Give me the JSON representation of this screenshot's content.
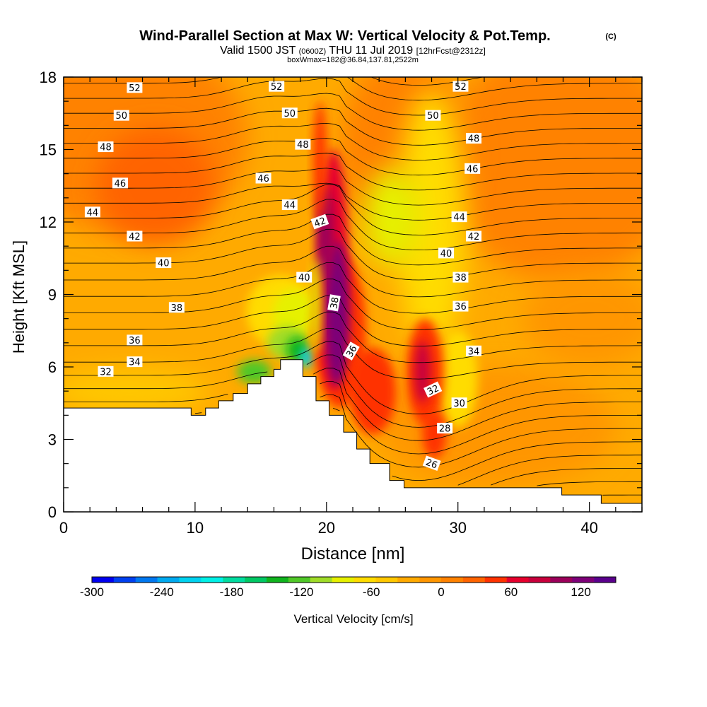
{
  "chart_data": {
    "type": "heatmap",
    "title": "Wind-Parallel Section at Max W: Vertical Velocity & Pot.Temp.",
    "title_mark": "(C)",
    "subtitle_parts": [
      "Valid 1500 JST",
      "(0600Z)",
      "THU 11 Jul 2019",
      "[12hrFcst@2312z]"
    ],
    "subtitle2": "boxWmax=182@36.84,137.81,2522m",
    "xlabel": "Distance [nm]",
    "ylabel": "Height [Kft MSL]",
    "xlim": [
      0,
      44
    ],
    "ylim": [
      0,
      18
    ],
    "x_major_ticks": [
      0,
      10,
      20,
      30,
      40
    ],
    "y_major_ticks": [
      0,
      3,
      6,
      9,
      12,
      15,
      18
    ],
    "colorbar": {
      "label": "Vertical Velocity [cm/s]",
      "min": -300,
      "max": 150,
      "step": 20,
      "tick_labels": [
        "-300",
        "-240",
        "-180",
        "-120",
        "-60",
        "0",
        "60",
        "120"
      ],
      "tick_values": [
        -300,
        -240,
        -180,
        -120,
        -60,
        0,
        60,
        120
      ],
      "colors": [
        "#0000f0",
        "#0040f0",
        "#0078f0",
        "#00aaf0",
        "#00d2f0",
        "#00f0e6",
        "#00dca0",
        "#00c864",
        "#10b41e",
        "#50c828",
        "#a0dc28",
        "#e6f000",
        "#ffdc00",
        "#ffc800",
        "#ffaa00",
        "#ff9600",
        "#ff8200",
        "#ff6400",
        "#ff3200",
        "#e6002d",
        "#c8003c",
        "#9b005a",
        "#7d0078",
        "#5a008c"
      ]
    },
    "terrain": {
      "x": [
        0,
        9.7,
        9.7,
        10.8,
        10.8,
        11.8,
        11.8,
        12.9,
        12.9,
        14.0,
        14.0,
        15.0,
        15.0,
        16.0,
        16.0,
        16.5,
        16.5,
        18.2,
        18.2,
        19.2,
        19.2,
        20.2,
        20.2,
        21.3,
        21.3,
        22.3,
        22.3,
        23.3,
        23.3,
        24.8,
        24.8,
        25.9,
        25.9,
        37.9,
        37.9,
        40.9,
        40.9,
        44
      ],
      "y": [
        4.3,
        4.3,
        4.0,
        4.0,
        4.3,
        4.3,
        4.6,
        4.6,
        4.9,
        4.9,
        5.3,
        5.3,
        5.6,
        5.6,
        5.9,
        5.9,
        6.3,
        6.3,
        5.6,
        5.6,
        4.6,
        4.6,
        4.0,
        4.0,
        3.3,
        3.3,
        2.6,
        2.6,
        2.0,
        2.0,
        1.3,
        1.3,
        1.0,
        1.0,
        0.7,
        0.7,
        0.35,
        0.35
      ]
    },
    "theta_contour_labels": [
      {
        "text": "52",
        "x": 5.4,
        "y": 17.55,
        "angle": 0
      },
      {
        "text": "52",
        "x": 16.2,
        "y": 17.6,
        "angle": 0
      },
      {
        "text": "52",
        "x": 30.2,
        "y": 17.6,
        "angle": 0
      },
      {
        "text": "50",
        "x": 4.4,
        "y": 16.4,
        "angle": 0
      },
      {
        "text": "50",
        "x": 17.2,
        "y": 16.5,
        "angle": 0
      },
      {
        "text": "50",
        "x": 28.1,
        "y": 16.4,
        "angle": 0
      },
      {
        "text": "48",
        "x": 3.2,
        "y": 15.1,
        "angle": 0
      },
      {
        "text": "48",
        "x": 18.2,
        "y": 15.2,
        "angle": 0
      },
      {
        "text": "48",
        "x": 31.2,
        "y": 15.45,
        "angle": 0
      },
      {
        "text": "46",
        "x": 4.3,
        "y": 13.6,
        "angle": 0
      },
      {
        "text": "46",
        "x": 15.2,
        "y": 13.8,
        "angle": 0
      },
      {
        "text": "46",
        "x": 31.1,
        "y": 14.2,
        "angle": 0
      },
      {
        "text": "44",
        "x": 2.2,
        "y": 12.4,
        "angle": 0
      },
      {
        "text": "44",
        "x": 17.2,
        "y": 12.7,
        "angle": 0
      },
      {
        "text": "44",
        "x": 30.1,
        "y": 12.2,
        "angle": 0
      },
      {
        "text": "42",
        "x": 5.4,
        "y": 11.4,
        "angle": 0
      },
      {
        "text": "42",
        "x": 19.5,
        "y": 12.0,
        "angle": -20
      },
      {
        "text": "42",
        "x": 31.2,
        "y": 11.4,
        "angle": 0
      },
      {
        "text": "40",
        "x": 7.6,
        "y": 10.3,
        "angle": 0
      },
      {
        "text": "40",
        "x": 18.3,
        "y": 9.7,
        "angle": 0
      },
      {
        "text": "40",
        "x": 29.1,
        "y": 10.7,
        "angle": 0
      },
      {
        "text": "38",
        "x": 8.6,
        "y": 8.45,
        "angle": 0
      },
      {
        "text": "38",
        "x": 20.6,
        "y": 8.65,
        "angle": -80
      },
      {
        "text": "38",
        "x": 30.2,
        "y": 9.7,
        "angle": 0
      },
      {
        "text": "36",
        "x": 5.4,
        "y": 7.1,
        "angle": 0
      },
      {
        "text": "36",
        "x": 21.9,
        "y": 6.65,
        "angle": -60
      },
      {
        "text": "36",
        "x": 30.2,
        "y": 8.5,
        "angle": 0
      },
      {
        "text": "34",
        "x": 5.4,
        "y": 6.2,
        "angle": 0
      },
      {
        "text": "34",
        "x": 31.2,
        "y": 6.65,
        "angle": 0
      },
      {
        "text": "32",
        "x": 3.2,
        "y": 5.8,
        "angle": 0
      },
      {
        "text": "32",
        "x": 28.1,
        "y": 5.05,
        "angle": -25
      },
      {
        "text": "30",
        "x": 30.1,
        "y": 4.5,
        "angle": 0
      },
      {
        "text": "28",
        "x": 29.0,
        "y": 3.45,
        "angle": 0
      },
      {
        "text": "26",
        "x": 28.0,
        "y": 2.0,
        "angle": 20
      }
    ]
  }
}
